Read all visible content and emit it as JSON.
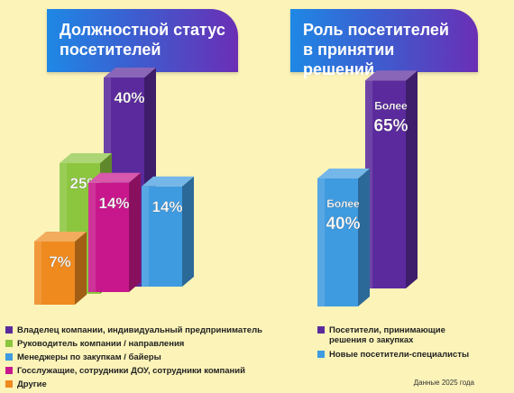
{
  "left_panel": {
    "title_lines": [
      "Должностной статус",
      "посетителей"
    ]
  },
  "right_panel": {
    "title_lines": [
      "Роль посетителей",
      "в принятии решений"
    ]
  },
  "chart_data": [
    {
      "type": "bar",
      "title": "Должностной статус посетителей",
      "categories": [
        "Владелец компании, индивидуальный предприниматель",
        "Руководитель компании / направления",
        "Менеджеры по закупкам / байеры",
        "Госслужащие, сотрудники ДОУ, сотрудники компаний",
        "Другие"
      ],
      "values": [
        40,
        25,
        14,
        14,
        7
      ],
      "labels": [
        "40%",
        "25%",
        "14%",
        "14%",
        "7%"
      ],
      "colors": [
        "#5b2a9d",
        "#8cc63f",
        "#3f9be0",
        "#c8178c",
        "#ef8a1f"
      ],
      "unit": "%",
      "grid": false
    },
    {
      "type": "bar",
      "title": "Роль посетителей в принятии решений",
      "categories": [
        "Посетители, принимающие решения о закупках",
        "Новые посетители-специалисты"
      ],
      "values": [
        65,
        40
      ],
      "labels": [
        [
          "Более",
          "65%"
        ],
        [
          "Более",
          "40%"
        ]
      ],
      "colors": [
        "#5b2a9d",
        "#3f9be0"
      ],
      "unit": "%",
      "grid": false
    }
  ],
  "legend_left": [
    {
      "label": "Владелец компании, индивидуальный предприниматель",
      "color": "#5b2a9d"
    },
    {
      "label": "Руководитель компании / направления",
      "color": "#8cc63f"
    },
    {
      "label": "Менеджеры по закупкам / байеры",
      "color": "#3f9be0"
    },
    {
      "label": "Госслужащие, сотрудники ДОУ, сотрудники компаний",
      "color": "#c8178c"
    },
    {
      "label": "Другие",
      "color": "#ef8a1f"
    }
  ],
  "legend_right": [
    {
      "lines": [
        "Посетители, принимающие",
        "решения о закупках"
      ],
      "color": "#5b2a9d"
    },
    {
      "lines": [
        "Новые посетители-специалисты"
      ],
      "color": "#3f9be0"
    }
  ],
  "footnote": "Данные 2025 года"
}
